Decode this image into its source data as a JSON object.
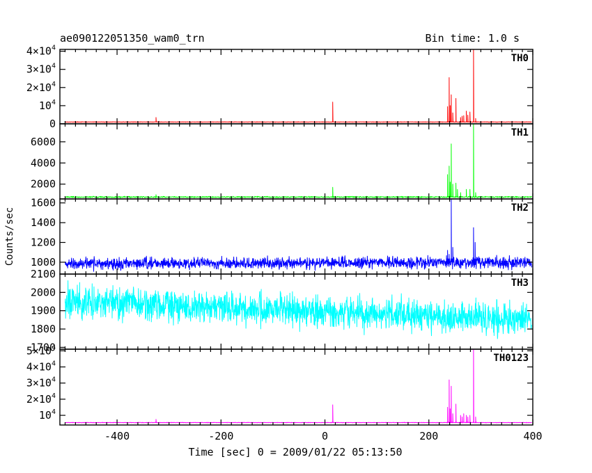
{
  "header": {
    "title": "ae090122051350_wam0_trn",
    "bin_time": "Bin time: 1.0 s"
  },
  "chart_data": {
    "type": "line",
    "xlabel": "Time [sec] 0 = 2009/01/22 05:13:50",
    "ylabel": "Counts/sec",
    "xlim": [
      -510,
      400
    ],
    "x_ticks": [
      "-400",
      "-200",
      "0",
      "200",
      "400"
    ],
    "x_tick_values": [
      -400,
      -200,
      0,
      200,
      400
    ],
    "grid": false,
    "panels": [
      {
        "name": "TH0",
        "color": "#ff0000",
        "ylim": [
          0,
          41000
        ],
        "y_ticks": [
          {
            "value": 0,
            "mant": "0",
            "exp": ""
          },
          {
            "value": 10000,
            "mant": "10",
            "exp": "4"
          },
          {
            "value": 20000,
            "mant": "2×10",
            "exp": "4"
          },
          {
            "value": 30000,
            "mant": "3×10",
            "exp": "4"
          },
          {
            "value": 40000,
            "mant": "4×10",
            "exp": "4"
          }
        ],
        "baseline": 1000,
        "noise": 80,
        "trend": 0,
        "features": [
          {
            "x": -325,
            "y": 3500
          },
          {
            "x": 15,
            "y": 12000
          },
          {
            "x": 236,
            "y": 9500
          },
          {
            "x": 239,
            "y": 25500
          },
          {
            "x": 241,
            "y": 10000
          },
          {
            "x": 243,
            "y": 16000
          },
          {
            "x": 246,
            "y": 6000
          },
          {
            "x": 252,
            "y": 14000
          },
          {
            "x": 261,
            "y": 3500
          },
          {
            "x": 264,
            "y": 4200
          },
          {
            "x": 267,
            "y": 4500
          },
          {
            "x": 272,
            "y": 7000
          },
          {
            "x": 275,
            "y": 4800
          },
          {
            "x": 279,
            "y": 6500
          },
          {
            "x": 286,
            "y": 41000
          },
          {
            "x": 290,
            "y": 3000
          }
        ]
      },
      {
        "name": "TH1",
        "color": "#00ff00",
        "ylim": [
          600,
          7700
        ],
        "y_ticks": [
          {
            "value": 2000,
            "mant": "2000",
            "exp": ""
          },
          {
            "value": 4000,
            "mant": "4000",
            "exp": ""
          },
          {
            "value": 6000,
            "mant": "6000",
            "exp": ""
          }
        ],
        "baseline": 780,
        "noise": 40,
        "trend": 0,
        "features": [
          {
            "x": -325,
            "y": 1000
          },
          {
            "x": 15,
            "y": 1700
          },
          {
            "x": 236,
            "y": 2900
          },
          {
            "x": 239,
            "y": 3700
          },
          {
            "x": 241,
            "y": 2200
          },
          {
            "x": 243,
            "y": 5800
          },
          {
            "x": 246,
            "y": 2000
          },
          {
            "x": 252,
            "y": 2100
          },
          {
            "x": 255,
            "y": 1500
          },
          {
            "x": 261,
            "y": 1200
          },
          {
            "x": 272,
            "y": 1500
          },
          {
            "x": 279,
            "y": 1500
          },
          {
            "x": 286,
            "y": 7700
          },
          {
            "x": 290,
            "y": 1200
          }
        ]
      },
      {
        "name": "TH2",
        "color": "#0000ff",
        "ylim": [
          880,
          1640
        ],
        "y_ticks": [
          {
            "value": 1000,
            "mant": "1000",
            "exp": ""
          },
          {
            "value": 1200,
            "mant": "1200",
            "exp": ""
          },
          {
            "value": 1400,
            "mant": "1400",
            "exp": ""
          },
          {
            "value": 1600,
            "mant": "1600",
            "exp": ""
          }
        ],
        "baseline": 985,
        "noise": 40,
        "trend": 15,
        "features": [
          {
            "x": 236,
            "y": 1120
          },
          {
            "x": 239,
            "y": 1080
          },
          {
            "x": 243,
            "y": 1640
          },
          {
            "x": 246,
            "y": 1150
          },
          {
            "x": 286,
            "y": 1350
          },
          {
            "x": 289,
            "y": 1200
          }
        ]
      },
      {
        "name": "TH3",
        "color": "#00ffff",
        "ylim": [
          1690,
          2100
        ],
        "y_ticks": [
          {
            "value": 1700,
            "mant": "1700",
            "exp": ""
          },
          {
            "value": 1800,
            "mant": "1800",
            "exp": ""
          },
          {
            "value": 1900,
            "mant": "1900",
            "exp": ""
          },
          {
            "value": 2000,
            "mant": "2000",
            "exp": ""
          },
          {
            "value": 2100,
            "mant": "2100",
            "exp": ""
          }
        ],
        "baseline": 1950,
        "noise": 60,
        "trend": -100,
        "features": []
      },
      {
        "name": "TH0123",
        "color": "#ff00ff",
        "ylim": [
          4000,
          51000
        ],
        "y_ticks": [
          {
            "value": 10000,
            "mant": "10",
            "exp": "4"
          },
          {
            "value": 20000,
            "mant": "2×10",
            "exp": "4"
          },
          {
            "value": 30000,
            "mant": "3×10",
            "exp": "4"
          },
          {
            "value": 40000,
            "mant": "4×10",
            "exp": "4"
          },
          {
            "value": 50000,
            "mant": "5×10",
            "exp": "4"
          }
        ],
        "baseline": 5500,
        "noise": 120,
        "trend": 0,
        "features": [
          {
            "x": -325,
            "y": 7500
          },
          {
            "x": 15,
            "y": 16500
          },
          {
            "x": 236,
            "y": 15000
          },
          {
            "x": 239,
            "y": 32000
          },
          {
            "x": 241,
            "y": 14000
          },
          {
            "x": 243,
            "y": 28000
          },
          {
            "x": 246,
            "y": 11000
          },
          {
            "x": 252,
            "y": 17000
          },
          {
            "x": 261,
            "y": 10000
          },
          {
            "x": 264,
            "y": 9000
          },
          {
            "x": 267,
            "y": 11000
          },
          {
            "x": 272,
            "y": 10000
          },
          {
            "x": 275,
            "y": 9000
          },
          {
            "x": 279,
            "y": 10000
          },
          {
            "x": 286,
            "y": 51000
          },
          {
            "x": 290,
            "y": 9000
          }
        ]
      }
    ]
  }
}
